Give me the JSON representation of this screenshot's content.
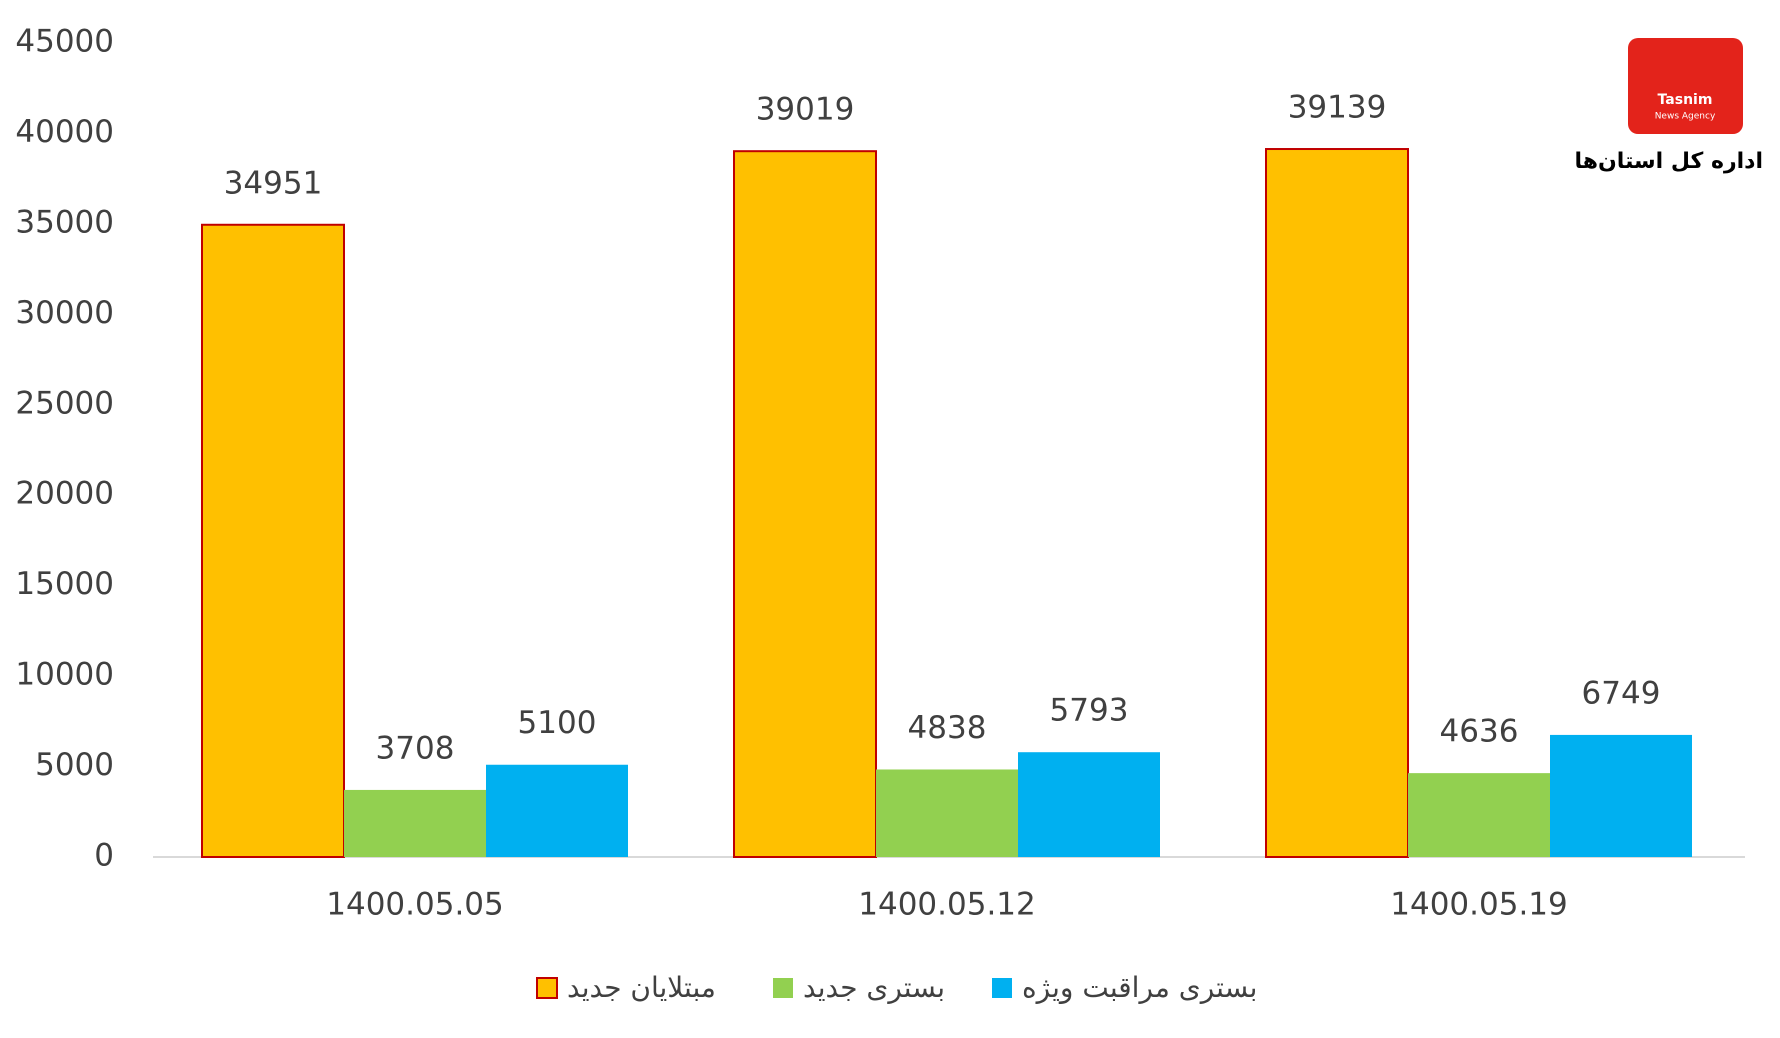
{
  "chart_data": {
    "type": "bar",
    "categories": [
      "1400.05.05",
      "1400.05.12",
      "1400.05.19"
    ],
    "series": [
      {
        "name": "مبتلایان جدید",
        "color": "#FFC000",
        "border": "#C00000",
        "values": [
          34951,
          39019,
          39139
        ]
      },
      {
        "name": "بستری جدید",
        "color": "#92D050",
        "values": [
          3708,
          4838,
          4636
        ]
      },
      {
        "name": "بستری مراقبت ویژه",
        "color": "#00B0F0",
        "values": [
          5100,
          5793,
          6749
        ]
      }
    ],
    "ylim": [
      0,
      45000
    ],
    "yticks": [
      0,
      5000,
      10000,
      15000,
      20000,
      25000,
      30000,
      35000,
      40000,
      45000
    ],
    "grid": false,
    "legend": "bottom",
    "logo_text": "Tasnim",
    "logo_subtext": "News Agency",
    "logo_caption": "اداره کل استان‌ها"
  }
}
